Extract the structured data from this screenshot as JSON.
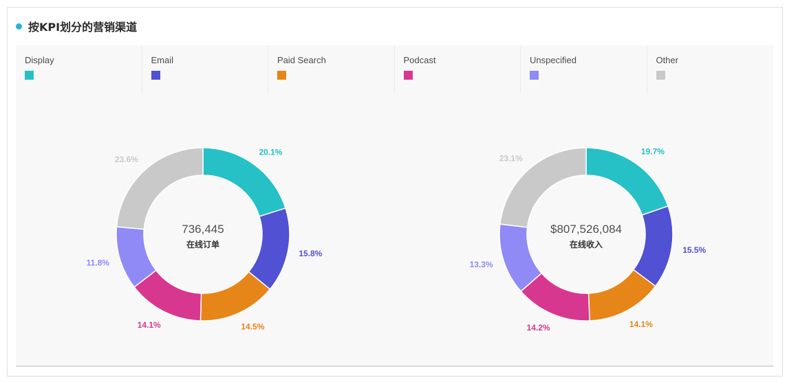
{
  "header": {
    "title": "按KPI划分的营销渠道",
    "dot_color": "#2bb3d6"
  },
  "legend": [
    {
      "label": "Display",
      "color": "#26c0c7"
    },
    {
      "label": "Email",
      "color": "#5151d3"
    },
    {
      "label": "Paid Search",
      "color": "#e68619"
    },
    {
      "label": "Podcast",
      "color": "#d83790"
    },
    {
      "label": "Unspecified",
      "color": "#8f8af5"
    },
    {
      "label": "Other",
      "color": "#c9c9c9"
    }
  ],
  "chart_data": [
    {
      "type": "pie",
      "variant": "donut",
      "center_value": "736,445",
      "center_label": "在线订单",
      "categories": [
        "Display",
        "Email",
        "Paid Search",
        "Podcast",
        "Unspecified",
        "Other"
      ],
      "values": [
        20.1,
        15.8,
        14.5,
        14.1,
        11.8,
        23.6
      ],
      "labels": [
        "20.1%",
        "15.8%",
        "14.5%",
        "14.1%",
        "11.8%",
        "23.6%"
      ],
      "unit": "%"
    },
    {
      "type": "pie",
      "variant": "donut",
      "center_value": "$807,526,084",
      "center_label": "在线收入",
      "categories": [
        "Display",
        "Email",
        "Paid Search",
        "Podcast",
        "Unspecified",
        "Other"
      ],
      "values": [
        19.7,
        15.5,
        14.1,
        14.2,
        13.3,
        23.1
      ],
      "labels": [
        "19.7%",
        "15.5%",
        "14.1%",
        "14.2%",
        "13.3%",
        "23.1%"
      ],
      "unit": "%"
    }
  ]
}
